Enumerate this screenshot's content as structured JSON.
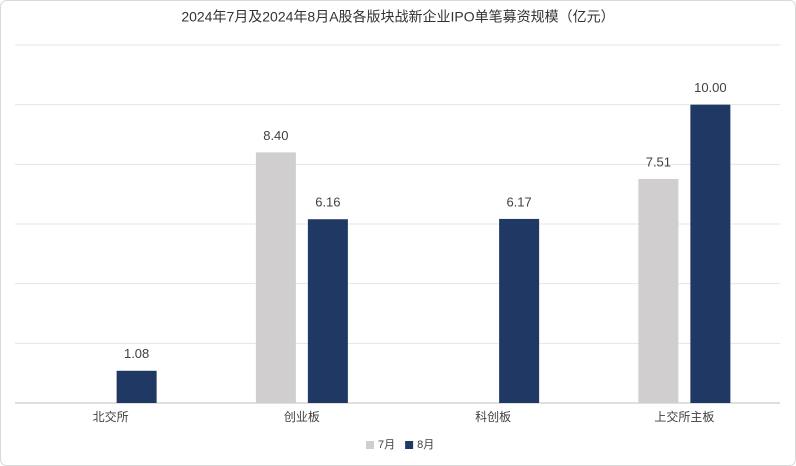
{
  "chart_data": {
    "type": "bar",
    "title": "2024年7月及2024年8月A股各版块战新企业IPO单笔募资规模（亿元）",
    "categories": [
      "北交所",
      "创业板",
      "科创板",
      "上交所主板"
    ],
    "series": [
      {
        "name": "7月",
        "color": "#d0cece",
        "values": [
          null,
          8.4,
          null,
          7.51
        ],
        "value_labels": [
          null,
          "8.40",
          null,
          "7.51"
        ]
      },
      {
        "name": "8月",
        "color": "#1f3864",
        "values": [
          1.08,
          6.16,
          6.17,
          10
        ],
        "value_labels": [
          "1.08",
          "6.16",
          "6.17",
          "10.00"
        ]
      }
    ],
    "ylim": [
      0,
      12
    ],
    "yticks": [
      0,
      2,
      4,
      6,
      8,
      10,
      12
    ],
    "ytick_labels": false,
    "grid": true,
    "legend": "bottom"
  }
}
